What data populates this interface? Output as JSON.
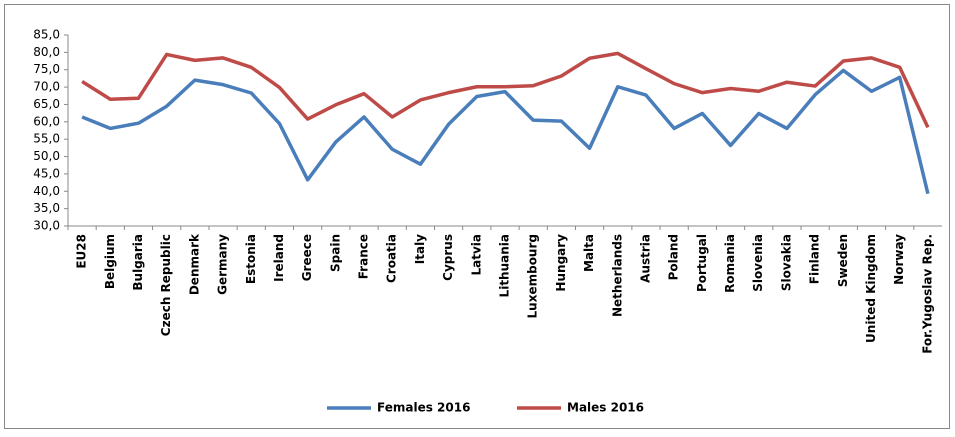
{
  "chart_data": {
    "type": "line",
    "categories": [
      "EU28",
      "Belgium",
      "Bulgaria",
      "Czech Republic",
      "Denmark",
      "Germany",
      "Estonia",
      "Ireland",
      "Greece",
      "Spain",
      "France",
      "Croatia",
      "Italy",
      "Cyprus",
      "Latvia",
      "Lithuania",
      "Luxembourg",
      "Hungary",
      "Malta",
      "Netherlands",
      "Austria",
      "Poland",
      "Portugal",
      "Romania",
      "Slovenia",
      "Slovakia",
      "Finland",
      "Sweden",
      "United Kingdom",
      "Norway",
      "For.Yugoslav Rep."
    ],
    "series": [
      {
        "name": "Females 2016",
        "color": "#4a7ebb",
        "values": [
          61.4,
          58.1,
          59.6,
          64.5,
          72.0,
          70.7,
          68.3,
          59.5,
          43.3,
          54.2,
          61.4,
          52.1,
          47.8,
          59.3,
          67.3,
          68.7,
          60.5,
          60.2,
          52.4,
          70.1,
          67.7,
          58.1,
          62.4,
          53.2,
          62.4,
          58.1,
          67.8,
          74.8,
          68.8,
          72.8,
          39.3
        ]
      },
      {
        "name": "Males 2016",
        "color": "#be4b48",
        "values": [
          71.6,
          66.5,
          66.8,
          79.4,
          77.7,
          78.4,
          75.7,
          69.9,
          60.8,
          64.9,
          68.1,
          61.4,
          66.3,
          68.4,
          70.1,
          70.1,
          70.4,
          73.2,
          78.3,
          79.7,
          75.3,
          71.0,
          68.4,
          69.6,
          68.8,
          71.4,
          70.3,
          77.5,
          78.4,
          75.7,
          58.4
        ]
      }
    ],
    "ylim": [
      30,
      85
    ],
    "yticks": [
      {
        "value": 30,
        "label": "30,0"
      },
      {
        "value": 35,
        "label": "35,0"
      },
      {
        "value": 40,
        "label": "40,0"
      },
      {
        "value": 45,
        "label": "45,0"
      },
      {
        "value": 50,
        "label": "50,0"
      },
      {
        "value": 55,
        "label": "55,0"
      },
      {
        "value": 60,
        "label": "60,0"
      },
      {
        "value": 65,
        "label": "65,0"
      },
      {
        "value": 70,
        "label": "70,0"
      },
      {
        "value": 75,
        "label": "75,0"
      },
      {
        "value": 80,
        "label": "80,0"
      },
      {
        "value": 85,
        "label": "85,0"
      }
    ],
    "grid": false,
    "legend": "bottom"
  }
}
